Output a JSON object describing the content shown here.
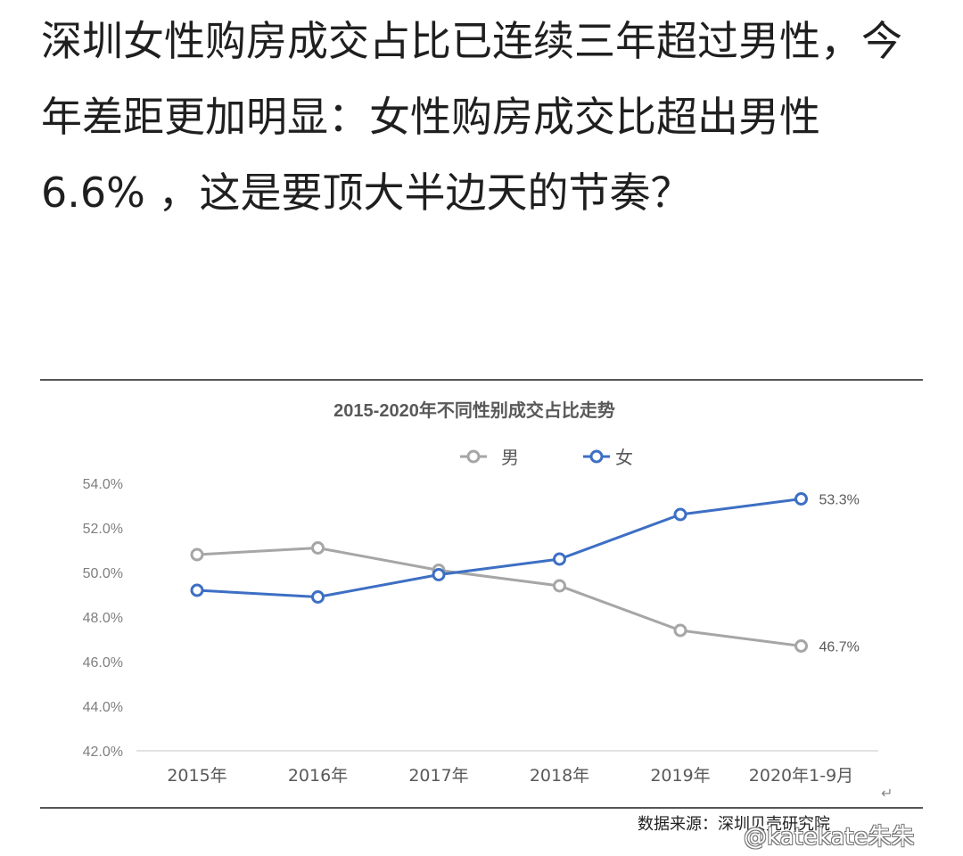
{
  "post": {
    "headline": "深圳女性购房成交占比已连续三年超过男性，今年差距更加明显：女性购房成交比超出男性6.6% ，这是要顶大半边天的节奏？"
  },
  "chart_data": {
    "type": "line",
    "title": "2015-2020年不同性别成交占比走势",
    "categories": [
      "2015年",
      "2016年",
      "2017年",
      "2018年",
      "2019年",
      "2020年1-9月"
    ],
    "series": [
      {
        "name": "男",
        "color": "#a6a6a6",
        "values": [
          50.8,
          51.1,
          50.1,
          49.4,
          47.4,
          46.7
        ],
        "end_label": "46.7%"
      },
      {
        "name": "女",
        "color": "#3d6fc4",
        "values": [
          49.2,
          48.9,
          49.9,
          50.6,
          52.6,
          53.3
        ],
        "end_label": "53.3%"
      }
    ],
    "ylim": [
      42,
      54
    ],
    "yticks": [
      "54.0%",
      "52.0%",
      "50.0%",
      "48.0%",
      "46.0%",
      "44.0%",
      "42.0%"
    ],
    "ytick_values": [
      54,
      52,
      50,
      48,
      46,
      44,
      42
    ],
    "xlabel": "",
    "ylabel": "",
    "grid": false,
    "legend_position": "top-center"
  },
  "source_note": "数据来源：深圳贝壳研究院",
  "watermark": "@katekate朱朱",
  "return_symbol": "↵"
}
